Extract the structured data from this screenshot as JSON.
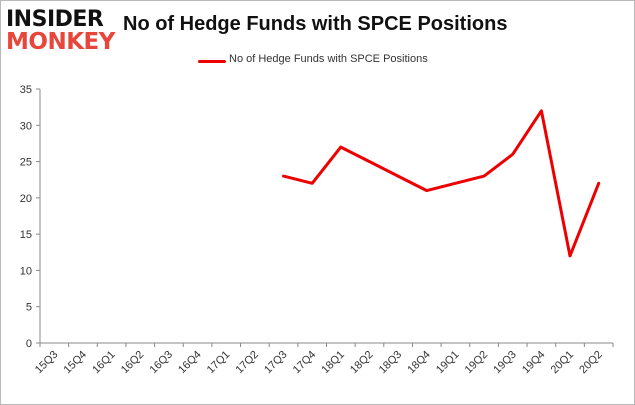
{
  "logo": {
    "line1": "INSIDER",
    "line2": "MONKEY"
  },
  "chart_data": {
    "type": "line",
    "title": "No of Hedge Funds with SPCE Positions",
    "xlabel": "",
    "ylabel": "",
    "categories": [
      "15Q3",
      "15Q4",
      "16Q1",
      "16Q2",
      "16Q3",
      "16Q4",
      "17Q1",
      "17Q2",
      "17Q3",
      "17Q4",
      "18Q1",
      "18Q2",
      "18Q3",
      "18Q4",
      "19Q1",
      "19Q2",
      "19Q3",
      "19Q4",
      "20Q1",
      "20Q2"
    ],
    "series": [
      {
        "name": "No of Hedge Funds with SPCE Positions",
        "color": "#ee0000",
        "values": [
          null,
          null,
          null,
          null,
          null,
          null,
          null,
          null,
          23,
          22,
          27,
          25,
          23,
          21,
          22,
          23,
          26,
          32,
          12,
          22
        ]
      }
    ],
    "ylim": [
      0,
      35
    ],
    "yticks": [
      0,
      5,
      10,
      15,
      20,
      25,
      30,
      35
    ],
    "grid": false,
    "legend": "top-center"
  }
}
